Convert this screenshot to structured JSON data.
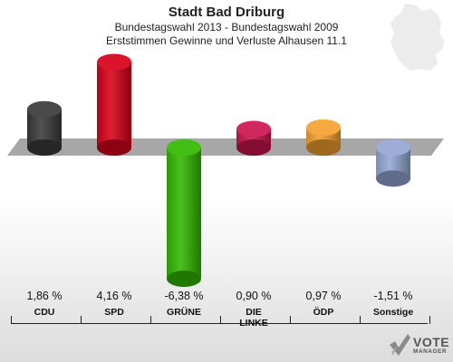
{
  "header": {
    "title": "Stadt Bad Driburg",
    "subtitle1": "Bundestagswahl 2013 - Bundestagswahl 2009",
    "subtitle2": "Erststimmen Gewinne und Verluste Alhausen 11.1"
  },
  "logo": {
    "vote": "VOTE",
    "manager": "MANAGER"
  },
  "chart_data": {
    "type": "bar",
    "categories": [
      "CDU",
      "SPD",
      "GRÜNE",
      "DIE LINKE",
      "ÖDP",
      "Sonstige"
    ],
    "category_lines": [
      [
        "CDU"
      ],
      [
        "SPD"
      ],
      [
        "GRÜNE"
      ],
      [
        "DIE",
        "LINKE"
      ],
      [
        "ÖDP"
      ],
      [
        "Sonstige"
      ]
    ],
    "values": [
      1.86,
      4.16,
      -6.38,
      0.9,
      0.97,
      -1.51
    ],
    "value_labels": [
      "1,86 %",
      "4,16 %",
      "-6,38 %",
      "0,90 %",
      "0,97 %",
      "-1,51 %"
    ],
    "colors": [
      "#3a3a3a",
      "#d8001a",
      "#33b800",
      "#cc1450",
      "#f5a030",
      "#94a6d4"
    ],
    "title": "Stadt Bad Driburg",
    "xlabel": "",
    "ylabel": "",
    "ylim": [
      -6.38,
      4.16
    ],
    "grid": false,
    "legend": "none"
  }
}
